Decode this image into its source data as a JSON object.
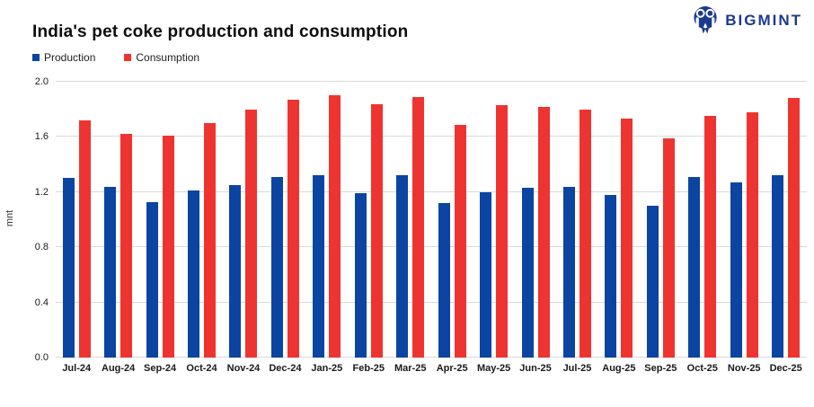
{
  "header": {
    "title": "India's pet coke production and consumption",
    "logo_text": "BIGMINT",
    "logo_color": "#1c3b8e"
  },
  "chart_data": {
    "type": "bar",
    "title": "India's pet coke production and consumption",
    "ylabel": "mnt",
    "xlabel": "",
    "ylim": [
      0.0,
      2.0
    ],
    "yticks": [
      0.0,
      0.4,
      0.8,
      1.2,
      1.6,
      2.0
    ],
    "grid": "horizontal",
    "legend_position": "top-left",
    "categories": [
      "Jul-24",
      "Aug-24",
      "Sep-24",
      "Oct-24",
      "Nov-24",
      "Dec-24",
      "Jan-25",
      "Feb-25",
      "Mar-25",
      "Apr-25",
      "May-25",
      "Jun-25",
      "Jul-25",
      "Aug-25",
      "Sep-25",
      "Oct-25",
      "Nov-25",
      "Dec-25"
    ],
    "series": [
      {
        "name": "Production",
        "color": "#0b45a1",
        "values": [
          1.3,
          1.24,
          1.13,
          1.21,
          1.25,
          1.31,
          1.32,
          1.19,
          1.32,
          1.12,
          1.2,
          1.23,
          1.24,
          1.18,
          1.1,
          1.31,
          1.27,
          1.32
        ]
      },
      {
        "name": "Consumption",
        "color": "#ee3430",
        "values": [
          1.72,
          1.62,
          1.61,
          1.7,
          1.8,
          1.87,
          1.9,
          1.84,
          1.89,
          1.69,
          1.83,
          1.82,
          1.8,
          1.73,
          1.59,
          1.75,
          1.78,
          1.88
        ]
      }
    ]
  }
}
